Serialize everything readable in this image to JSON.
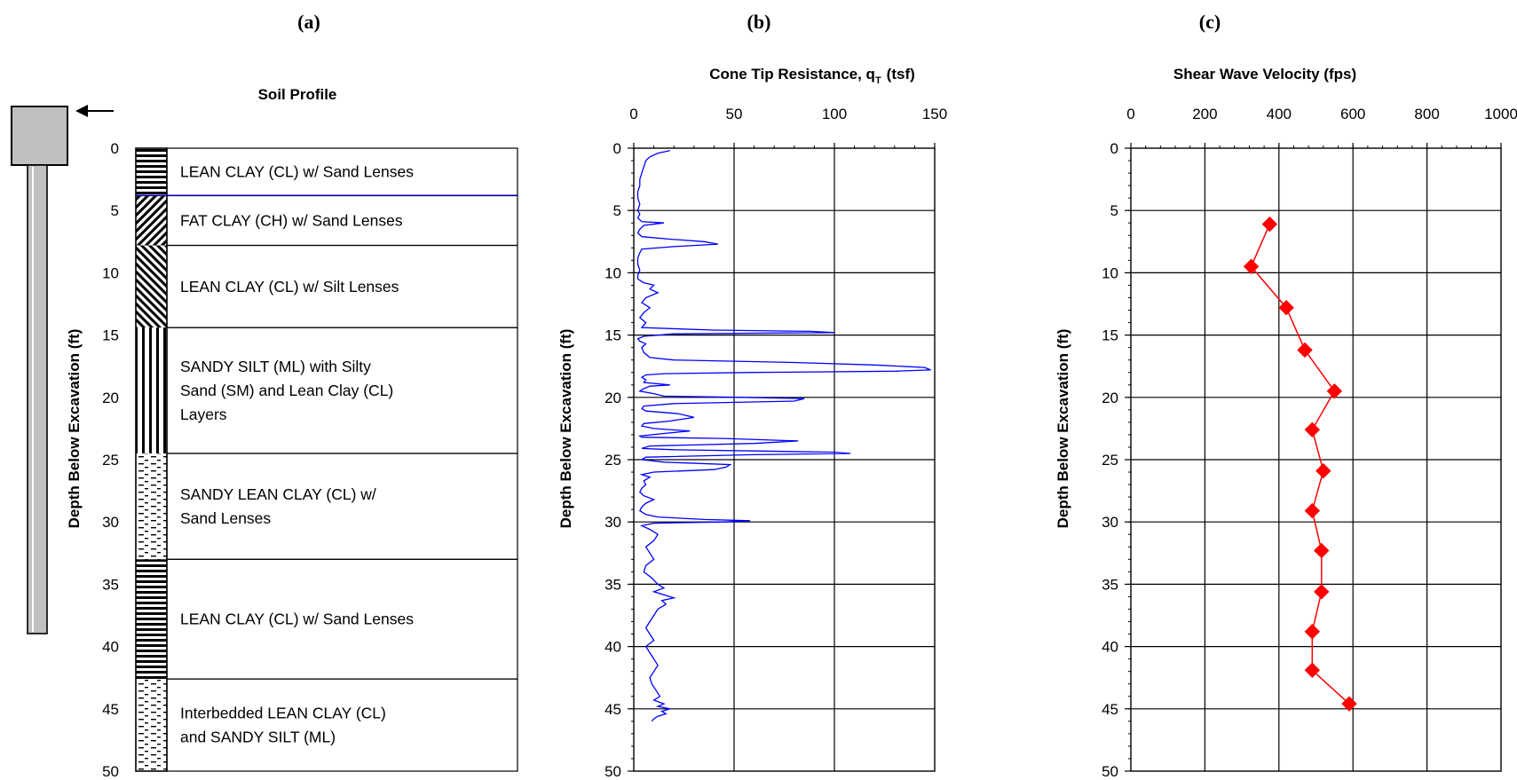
{
  "panels": {
    "a": "(a)",
    "b": "(b)",
    "c": "(c)"
  },
  "colors": {
    "cpt_line": "#0000ff",
    "vs_line": "#ff0000",
    "boundary_highlight": "#0000a0",
    "piezometer_fill": "#c0c0c0"
  },
  "icons": {
    "pointer": "arrow-left-icon",
    "piezometer": "piezometer-icon"
  },
  "chart_data": [
    {
      "type": "table",
      "title": "Soil Profile",
      "ylabel": "Depth Below Excavation (ft)",
      "ylim": [
        0,
        50
      ],
      "yticks": [
        0,
        5,
        10,
        15,
        20,
        25,
        30,
        35,
        40,
        45,
        50
      ],
      "layers": [
        {
          "top": 0,
          "bottom": 3.8,
          "pattern": "horizontal",
          "lines": [
            "LEAN CLAY (CL) w/ Sand Lenses"
          ]
        },
        {
          "top": 3.8,
          "bottom": 7.8,
          "pattern": "diag-fwd",
          "lines": [
            "FAT CLAY (CH) w/ Sand Lenses"
          ]
        },
        {
          "top": 7.8,
          "bottom": 14.4,
          "pattern": "diag-back",
          "lines": [
            "LEAN CLAY (CL) w/ Silt Lenses"
          ]
        },
        {
          "top": 14.4,
          "bottom": 24.5,
          "pattern": "vertical-dots",
          "lines": [
            "SANDY SILT (ML) with Silty",
            "Sand (SM) and Lean Clay (CL)",
            "Layers"
          ]
        },
        {
          "top": 24.5,
          "bottom": 33.0,
          "pattern": "dashes",
          "lines": [
            "SANDY LEAN CLAY (CL) w/",
            "Sand Lenses"
          ]
        },
        {
          "top": 33.0,
          "bottom": 42.6,
          "pattern": "horizontal",
          "lines": [
            "LEAN CLAY (CL) w/ Sand Lenses"
          ]
        },
        {
          "top": 42.6,
          "bottom": 50,
          "pattern": "dashes",
          "lines": [
            "Interbedded LEAN CLAY (CL)",
            "and SANDY SILT (ML)"
          ]
        }
      ]
    },
    {
      "type": "line",
      "title": "Cone Tip Resistance, q",
      "title_sub": "T",
      "title_unit": "(tsf)",
      "ylabel": "Depth Below Excavation (ft)",
      "xlim": [
        0,
        150
      ],
      "ylim": [
        0,
        50
      ],
      "xticks": [
        0,
        50,
        100,
        150
      ],
      "yticks": [
        0,
        5,
        10,
        15,
        20,
        25,
        30,
        35,
        40,
        45,
        50
      ],
      "grid": true,
      "series": [
        {
          "depth": [
            0.2,
            0.4,
            0.7,
            1,
            1.5,
            2,
            2.5,
            3,
            3.5,
            4,
            4.5,
            5,
            5.3,
            5.6,
            5.9,
            6,
            6.2,
            6.5,
            6.8,
            7.1,
            7.3,
            7.5,
            7.7,
            7.9,
            8.1,
            8.4,
            8.8,
            9.3,
            9.8,
            10.2,
            10.5,
            10.8,
            11,
            11.3,
            11.6,
            12,
            12.4,
            12.8,
            13.2,
            13.6,
            14,
            14.4,
            14.6,
            14.7,
            14.8,
            14.9,
            15.1,
            15.3,
            15.5,
            15.7,
            16,
            16.4,
            16.8,
            17,
            17.2,
            17.4,
            17.6,
            17.8,
            17.9,
            18,
            18.1,
            18.2,
            18.4,
            18.6,
            18.8,
            19,
            19.1,
            19.3,
            19.5,
            19.7,
            19.9,
            20,
            20.1,
            20.3,
            20.5,
            20.7,
            20.9,
            21.1,
            21.3,
            21.6,
            21.9,
            22.1,
            22.3,
            22.5,
            22.7,
            22.9,
            23.1,
            23.2,
            23.3,
            23.5,
            23.7,
            23.9,
            24.1,
            24.2,
            24.3,
            24.4,
            24.5,
            24.6,
            24.8,
            25,
            25.2,
            25.4,
            25.6,
            25.8,
            26,
            26.2,
            26.4,
            26.7,
            27,
            27.3,
            27.6,
            27.9,
            28.2,
            28.5,
            28.8,
            29.1,
            29.4,
            29.6,
            29.8,
            29.9,
            30,
            30.1,
            30.3,
            30.6,
            31,
            31.5,
            32,
            32.5,
            33,
            33.5,
            34,
            34.5,
            35,
            35.3,
            35.6,
            35.9,
            36.1,
            36.3,
            36.6,
            37,
            37.5,
            38,
            38.5,
            39,
            39.5,
            40,
            40.5,
            41,
            41.5,
            42,
            42.5,
            43,
            43.5,
            44,
            44.3,
            44.6,
            44.8,
            45,
            45.2,
            45.4,
            45.6,
            45.8,
            46
          ],
          "qt": [
            18,
            12,
            8,
            6,
            5,
            4,
            3,
            3,
            2,
            2,
            3,
            2,
            3,
            2,
            4,
            15,
            5,
            3,
            2,
            4,
            18,
            35,
            42,
            20,
            4,
            3,
            2,
            2,
            3,
            2,
            2,
            5,
            10,
            8,
            12,
            6,
            4,
            8,
            5,
            3,
            6,
            4,
            40,
            88,
            100,
            20,
            5,
            2,
            3,
            6,
            4,
            5,
            8,
            20,
            80,
            120,
            145,
            148,
            130,
            60,
            15,
            6,
            4,
            6,
            5,
            18,
            8,
            5,
            3,
            10,
            15,
            55,
            85,
            80,
            20,
            5,
            4,
            6,
            22,
            30,
            18,
            5,
            4,
            10,
            28,
            15,
            3,
            4,
            45,
            82,
            60,
            8,
            4,
            20,
            60,
            100,
            108,
            60,
            6,
            4,
            15,
            48,
            46,
            40,
            10,
            4,
            8,
            5,
            6,
            4,
            3,
            5,
            10,
            6,
            4,
            3,
            6,
            12,
            35,
            58,
            45,
            10,
            4,
            8,
            12,
            10,
            6,
            8,
            10,
            6,
            5,
            9,
            12,
            15,
            10,
            16,
            20,
            14,
            16,
            12,
            10,
            8,
            6,
            8,
            10,
            6,
            8,
            10,
            12,
            10,
            8,
            9,
            11,
            13,
            10,
            15,
            12,
            18,
            14,
            16,
            12,
            10,
            9
          ],
          "color": "#0000ff"
        }
      ]
    },
    {
      "type": "line",
      "title": "Shear Wave Velocity (fps)",
      "ylabel": "Depth Below Excavation (ft)",
      "xlim": [
        0,
        1000
      ],
      "ylim": [
        0,
        50
      ],
      "xticks": [
        0,
        200,
        400,
        600,
        800,
        1000
      ],
      "yticks": [
        0,
        5,
        10,
        15,
        20,
        25,
        30,
        35,
        40,
        45,
        50
      ],
      "grid": true,
      "series": [
        {
          "marker": "diamond",
          "color": "#ff0000",
          "x": [
            375,
            325,
            420,
            470,
            550,
            490,
            520,
            490,
            515,
            515,
            490,
            490,
            590
          ],
          "depth": [
            6.1,
            9.5,
            12.8,
            16.2,
            19.5,
            22.6,
            25.9,
            29.1,
            32.3,
            35.6,
            38.8,
            41.9,
            44.6
          ]
        }
      ]
    }
  ]
}
